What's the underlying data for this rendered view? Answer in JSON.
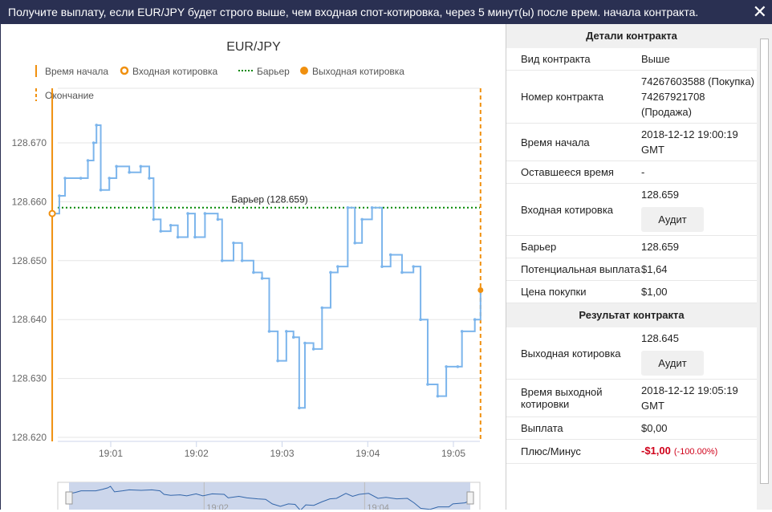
{
  "header": {
    "text": "Получите выплату, если EUR/JPY будет строго выше, чем входная спот-котировка, через 5 минут(ы) после врем. начала контракта.",
    "close": "✕"
  },
  "chart_data": {
    "type": "line",
    "title": "EUR/JPY",
    "legend": [
      "Время начала",
      "Входная котировка",
      "Барьер",
      "Выходная котировка",
      "Окончание"
    ],
    "ylim": [
      128.619,
      128.676
    ],
    "yticks": [
      "128.670",
      "128.660",
      "128.650",
      "128.640",
      "128.630",
      "128.620"
    ],
    "xticks": [
      "19:01",
      "19:02",
      "19:03",
      "19:04",
      "19:05"
    ],
    "barrier": 128.659,
    "barrier_label": "Барьер (128.659)",
    "start": "19:00:19",
    "end": "19:05:19",
    "series_color": "#7cb5ec",
    "marker_color": "#f0900f",
    "points": [
      [
        "19:00:19",
        128.658
      ],
      [
        "19:00:24",
        128.661
      ],
      [
        "19:00:28",
        128.664
      ],
      [
        "19:00:39",
        128.664
      ],
      [
        "19:00:44",
        128.667
      ],
      [
        "19:00:48",
        128.67
      ],
      [
        "19:00:50",
        128.673
      ],
      [
        "19:00:53",
        128.662
      ],
      [
        "19:00:59",
        128.664
      ],
      [
        "19:01:04",
        128.666
      ],
      [
        "19:01:13",
        128.665
      ],
      [
        "19:01:21",
        128.666
      ],
      [
        "19:01:27",
        128.664
      ],
      [
        "19:01:30",
        128.657
      ],
      [
        "19:01:35",
        128.655
      ],
      [
        "19:01:42",
        128.656
      ],
      [
        "19:01:47",
        128.654
      ],
      [
        "19:01:54",
        128.658
      ],
      [
        "19:01:59",
        128.654
      ],
      [
        "19:02:06",
        128.658
      ],
      [
        "19:02:15",
        128.657
      ],
      [
        "19:02:18",
        128.65
      ],
      [
        "19:02:26",
        128.653
      ],
      [
        "19:02:32",
        128.65
      ],
      [
        "19:02:40",
        128.648
      ],
      [
        "19:02:46",
        128.647
      ],
      [
        "19:02:51",
        128.638
      ],
      [
        "19:02:57",
        128.633
      ],
      [
        "19:03:03",
        128.638
      ],
      [
        "19:03:08",
        128.637
      ],
      [
        "19:03:12",
        128.625
      ],
      [
        "19:03:16",
        128.636
      ],
      [
        "19:03:22",
        128.635
      ],
      [
        "19:03:28",
        128.642
      ],
      [
        "19:03:34",
        128.648
      ],
      [
        "19:03:39",
        128.649
      ],
      [
        "19:03:46",
        128.659
      ],
      [
        "19:03:51",
        128.653
      ],
      [
        "19:03:56",
        128.657
      ],
      [
        "19:04:03",
        128.659
      ],
      [
        "19:04:10",
        128.649
      ],
      [
        "19:04:16",
        128.651
      ],
      [
        "19:04:24",
        128.648
      ],
      [
        "19:04:32",
        128.649
      ],
      [
        "19:04:37",
        128.64
      ],
      [
        "19:04:42",
        128.629
      ],
      [
        "19:04:49",
        128.627
      ],
      [
        "19:04:55",
        128.632
      ],
      [
        "19:05:03",
        128.632
      ],
      [
        "19:05:06",
        128.638
      ],
      [
        "19:05:15",
        128.64
      ],
      [
        "19:05:19",
        128.645
      ]
    ],
    "navigator_ticks": [
      "19:02",
      "19:04"
    ]
  },
  "panel": {
    "details_title": "Детали контракта",
    "rows": [
      {
        "k": "Вид контракта",
        "v": "Выше"
      },
      {
        "k": "Номер контракта",
        "v": "74267603588 (Покупка) 74267921708 (Продажа)"
      },
      {
        "k": "Время начала",
        "v": "2018-12-12 19:00:19 GMT"
      },
      {
        "k": "Оставшееся время",
        "v": "-"
      },
      {
        "k": "Входная котировка",
        "v": "128.659",
        "btn": "Аудит"
      },
      {
        "k": "Барьер",
        "v": "128.659"
      },
      {
        "k": "Потенциальная выплата",
        "v": "$1,64"
      },
      {
        "k": "Цена покупки",
        "v": "$1,00"
      }
    ],
    "result_title": "Результат контракта",
    "rows2": [
      {
        "k": "Выходная котировка",
        "v": "128.645",
        "btn": "Аудит"
      },
      {
        "k": "Время выходной котировки",
        "v": "2018-12-12 19:05:19 GMT"
      },
      {
        "k": "Выплата",
        "v": "$0,00"
      },
      {
        "k": "Плюс/Минус",
        "v": "-$1,00",
        "pct": "(-100.00%)"
      }
    ]
  }
}
